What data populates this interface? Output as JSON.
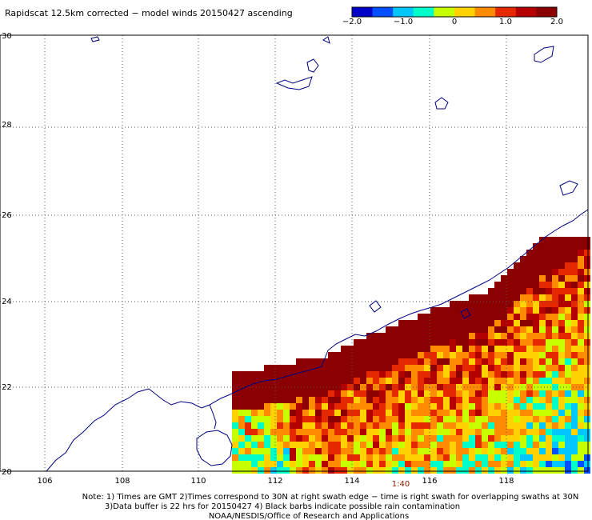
{
  "title": "Rapidscat 12.5km corrected − model winds 20150427 ascending",
  "colorbar": {
    "ticks": [
      "−2.0",
      "−1.0",
      "0",
      "1.0",
      "2.0"
    ],
    "colors": [
      "#0000c8",
      "#0050ff",
      "#00c8ff",
      "#00ffc8",
      "#c8ff00",
      "#ffd200",
      "#ff8c00",
      "#e62800",
      "#b40000",
      "#8b0000"
    ]
  },
  "map": {
    "lon_range": [
      105,
      120
    ],
    "lat_range": [
      20,
      30
    ],
    "lon_labels": [
      "106",
      "108",
      "110",
      "112",
      "114",
      "116",
      "118"
    ],
    "lat_labels": [
      "30",
      "28",
      "26",
      "24",
      "22",
      "20"
    ],
    "coast_color": "#000080",
    "grid_style": "dotted"
  },
  "time_label": "1:40",
  "notes": [
    "Note: 1) Times are GMT 2)Times correspond to 30N at right swath edge − time is right swath for overlapping swaths at 30N",
    "3)Data buffer is 22 hrs for 20150427 4) Black barbs indicate possible rain contamination",
    "NOAA/NESDIS/Office of Research and Applications"
  ]
}
